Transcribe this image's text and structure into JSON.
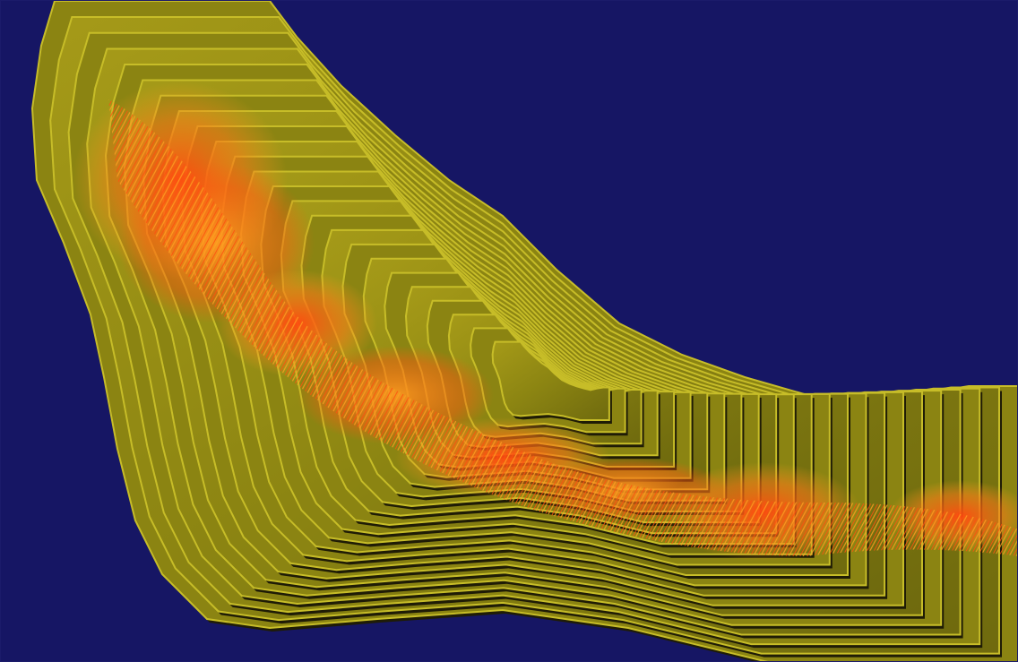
{
  "scene": {
    "description_type": "3d-pit-render",
    "colors": {
      "background": "#161664",
      "bench_face": "#8b8412",
      "bench_light": "#c7bd28",
      "bench_shadow": "#1f1c06",
      "ore_hot": "#ff4a10",
      "ore_warm": "#ffa020"
    }
  }
}
